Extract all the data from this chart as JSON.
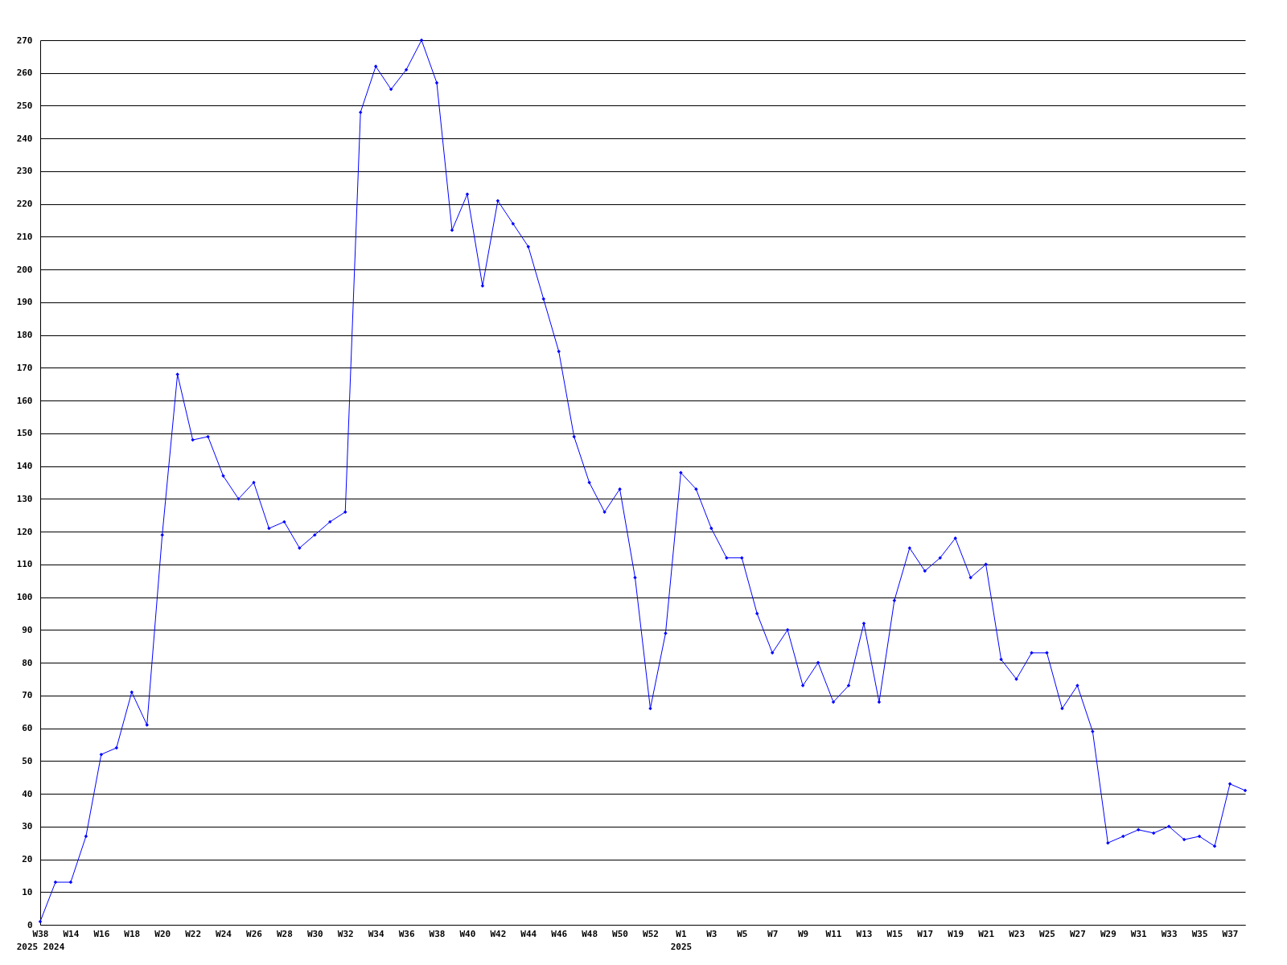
{
  "chart_data": {
    "type": "line",
    "categories": [
      "W38\n2025 2024",
      null,
      "W14",
      null,
      "W16",
      null,
      "W18",
      null,
      "W20",
      null,
      "W22",
      null,
      "W24",
      null,
      "W26",
      null,
      "W28",
      null,
      "W30",
      null,
      "W32",
      null,
      "W34",
      null,
      "W36",
      null,
      "W38",
      null,
      "W40",
      null,
      "W42",
      null,
      "W44",
      null,
      "W46",
      null,
      "W48",
      null,
      "W50",
      null,
      "W52",
      null,
      "W1\n2025",
      null,
      "W3",
      null,
      "W5",
      null,
      "W7",
      null,
      "W9",
      null,
      "W11",
      null,
      "W13",
      null,
      "W15",
      null,
      "W17",
      null,
      "W19",
      null,
      "W21",
      null,
      "W23",
      null,
      "W25",
      null,
      "W27",
      null,
      "W29",
      null,
      "W31",
      null,
      "W33",
      null,
      "W35",
      null,
      "W37",
      null
    ],
    "series": [
      {
        "color": "#0000ff",
        "values": [
          1,
          13,
          13,
          27,
          52,
          54,
          71,
          61,
          119,
          168,
          148,
          149,
          137,
          130,
          135,
          121,
          123,
          115,
          119,
          123,
          126,
          248,
          262,
          255,
          261,
          270,
          257,
          212,
          223,
          195,
          221,
          214,
          207,
          191,
          175,
          149,
          135,
          126,
          133,
          106,
          66,
          89,
          138,
          133,
          121,
          112,
          112,
          95,
          83,
          90,
          73,
          80,
          68,
          73,
          92,
          68,
          99,
          115,
          108,
          112,
          118,
          106,
          110,
          81,
          75,
          83,
          83,
          66,
          73,
          59,
          25,
          27,
          29,
          28,
          30,
          26,
          27,
          24,
          43,
          41
        ]
      }
    ],
    "ylim": [
      0,
      270
    ],
    "yticks": [
      0,
      10,
      20,
      30,
      40,
      50,
      60,
      70,
      80,
      90,
      100,
      110,
      120,
      130,
      140,
      150,
      160,
      170,
      180,
      190,
      200,
      210,
      220,
      230,
      240,
      250,
      260,
      270
    ],
    "grid": "y",
    "marker": "diamond",
    "line_style": "solid"
  }
}
